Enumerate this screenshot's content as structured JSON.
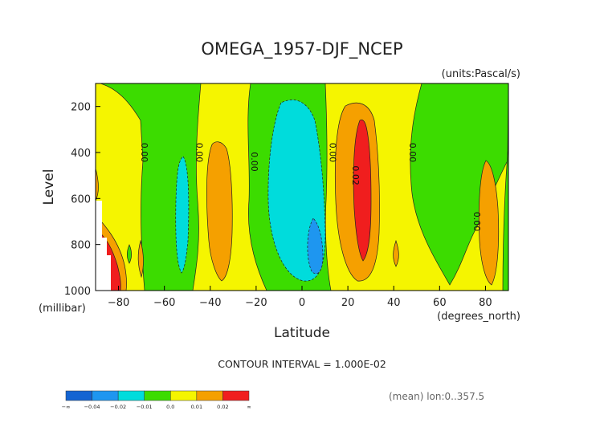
{
  "chart_data": {
    "type": "heatmap",
    "title": "OMEGA_1957-DJF_NCEP",
    "units": "(units:Pascal/s)",
    "xlabel": "Latitude",
    "x_unit": "(degrees_north)",
    "ylabel": "Level",
    "y_unit": "(millibar)",
    "xlim": [
      -90,
      90
    ],
    "ylim": [
      1000,
      100
    ],
    "x_ticks": [
      "-80",
      "-60",
      "-40",
      "-20",
      "0",
      "20",
      "40",
      "60",
      "80"
    ],
    "y_ticks": [
      "200",
      "400",
      "600",
      "800",
      "1000"
    ],
    "contour_interval_text": "CONTOUR INTERVAL = 1.000E-02",
    "mean_text": "(mean) lon:0..357.5",
    "contour_labels": [
      {
        "text": "0.00",
        "lat": -70,
        "lev": 400
      },
      {
        "text": "0.00",
        "lat": -46,
        "lev": 400
      },
      {
        "text": "0.00",
        "lat": -22,
        "lev": 440
      },
      {
        "text": "0.00",
        "lat": 12,
        "lev": 400
      },
      {
        "text": "0.02",
        "lat": 22,
        "lev": 500
      },
      {
        "text": "0.00",
        "lat": 47,
        "lev": 400
      },
      {
        "text": "0.00",
        "lat": 75,
        "lev": 700
      }
    ],
    "legend": {
      "colors": [
        "#1464d2",
        "#1e96f0",
        "#00dcdc",
        "#3cdc00",
        "#f5f500",
        "#f5a000",
        "#f01e1e"
      ],
      "labels": [
        "-∞",
        "-0.04",
        "-0.02",
        "-0.01",
        "0.0",
        "0.01",
        "0.02",
        "∞"
      ]
    }
  }
}
